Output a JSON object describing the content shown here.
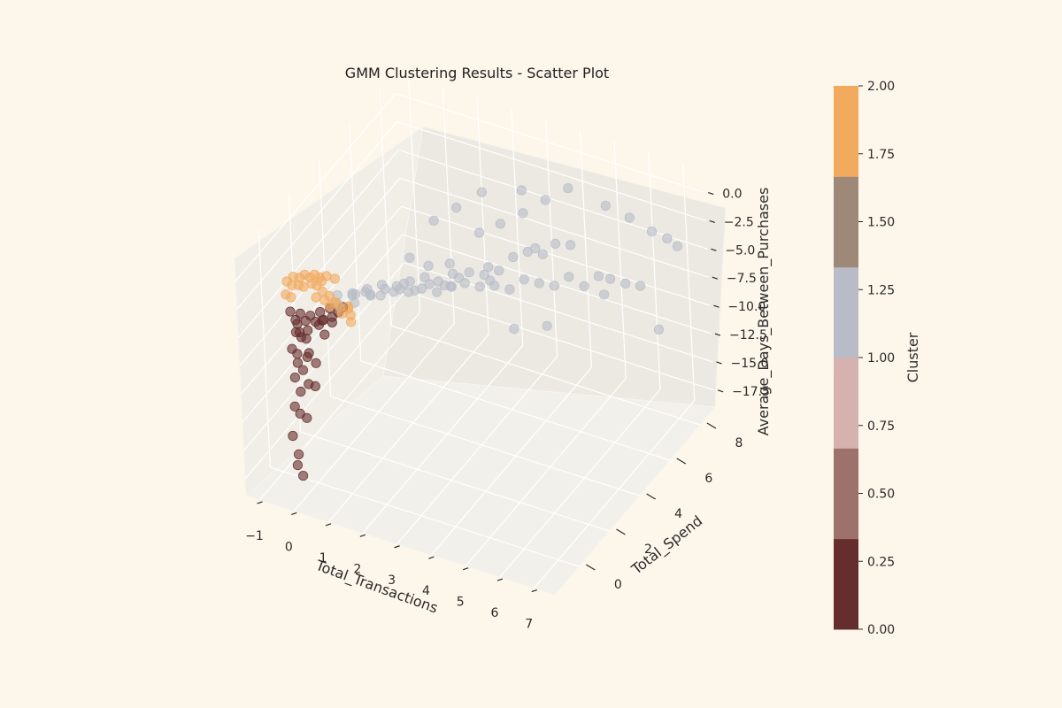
{
  "chart_data": {
    "type": "scatter",
    "projection": "3d",
    "title": "GMM Clustering Results - Scatter Plot",
    "xlabel": "Total_Transactions",
    "ylabel": "Total_Spend",
    "zlabel": "Average_Days_Between_Purchases",
    "xlim": [
      -1.4,
      7.6
    ],
    "ylim": [
      -1.6,
      9.0
    ],
    "zlim": [
      -19.0,
      2.0
    ],
    "x_ticks": [
      "−1",
      "0",
      "1",
      "2",
      "3",
      "4",
      "5",
      "6",
      "7"
    ],
    "y_ticks": [
      "0",
      "2",
      "4",
      "6",
      "8"
    ],
    "z_ticks": [
      "0.0",
      "−2.5",
      "−5.0",
      "−7.5",
      "−10.0",
      "−12.5",
      "−15.0",
      "−17.5"
    ],
    "grid": true,
    "marker_alpha": 0.6,
    "colorbar": {
      "label": "Cluster",
      "range": [
        0,
        2
      ],
      "ticks": [
        "0.00",
        "0.25",
        "0.50",
        "0.75",
        "1.00",
        "1.25",
        "1.50",
        "1.75",
        "2.00"
      ],
      "bands": [
        "#652d2d",
        "#9e726c",
        "#d5b2ad",
        "#b7bcc6",
        "#9e8877",
        "#f2aa5f"
      ]
    },
    "series": [
      {
        "cluster": 0,
        "color": "#652d2d",
        "points": [
          [
            -0.3,
            -0.6,
            -3.2
          ],
          [
            -0.2,
            -0.5,
            -4.0
          ],
          [
            -0.2,
            -0.4,
            -4.5
          ],
          [
            -0.1,
            -0.5,
            -5.0
          ],
          [
            -0.3,
            -0.3,
            -5.5
          ],
          [
            -0.2,
            -0.2,
            -6.0
          ],
          [
            -0.1,
            -0.4,
            -3.5
          ],
          [
            0.0,
            -0.3,
            -4.2
          ],
          [
            -0.3,
            -0.6,
            -6.5
          ],
          [
            -0.2,
            -0.5,
            -7.0
          ],
          [
            0.1,
            -0.2,
            -3.8
          ],
          [
            0.2,
            -0.1,
            -4.4
          ],
          [
            0.0,
            -0.2,
            -5.2
          ],
          [
            -0.1,
            -0.1,
            -6.2
          ],
          [
            0.3,
            0.0,
            -3.6
          ],
          [
            0.4,
            -0.1,
            -4.1
          ],
          [
            0.2,
            0.1,
            -5.0
          ],
          [
            0.5,
            0.2,
            -3.4
          ],
          [
            0.6,
            0.1,
            -3.9
          ],
          [
            0.3,
            0.2,
            -4.6
          ],
          [
            -0.2,
            -0.5,
            -7.8
          ],
          [
            -0.1,
            -0.4,
            -8.5
          ],
          [
            0.0,
            -0.3,
            -7.4
          ],
          [
            0.1,
            -0.4,
            -6.8
          ],
          [
            -0.3,
            -0.5,
            -9.2
          ],
          [
            -0.2,
            -0.4,
            -10.5
          ],
          [
            0.0,
            -0.3,
            -9.8
          ],
          [
            0.2,
            -0.2,
            -7.9
          ],
          [
            -0.3,
            -0.6,
            -11.6
          ],
          [
            -0.2,
            -0.5,
            -12.3
          ],
          [
            0.1,
            -0.1,
            -10.2
          ],
          [
            -0.1,
            -0.3,
            -12.9
          ],
          [
            -0.4,
            -0.6,
            -14.3
          ],
          [
            -0.3,
            -0.5,
            -16.0
          ],
          [
            -0.3,
            -0.6,
            -16.8
          ],
          [
            -0.2,
            -0.5,
            -17.8
          ],
          [
            0.4,
            0.0,
            -5.5
          ],
          [
            0.7,
            0.3,
            -3.7
          ],
          [
            0.8,
            0.4,
            -3.3
          ],
          [
            0.5,
            0.3,
            -4.8
          ]
        ]
      },
      {
        "cluster": 1,
        "color": "#b7bcc6",
        "points": [
          [
            0.6,
            0.5,
            -2.6
          ],
          [
            0.9,
            0.8,
            -2.8
          ],
          [
            1.2,
            1.0,
            -2.5
          ],
          [
            1.5,
            1.3,
            -3.0
          ],
          [
            1.8,
            1.5,
            -2.7
          ],
          [
            2.1,
            1.8,
            -2.9
          ],
          [
            2.4,
            2.0,
            -2.6
          ],
          [
            2.7,
            2.3,
            -3.1
          ],
          [
            3.0,
            2.6,
            -2.8
          ],
          [
            3.3,
            2.8,
            -2.5
          ],
          [
            3.6,
            3.1,
            -3.0
          ],
          [
            0.8,
            1.2,
            -3.4
          ],
          [
            1.1,
            1.5,
            -3.6
          ],
          [
            1.4,
            1.8,
            -3.3
          ],
          [
            1.7,
            2.1,
            -3.5
          ],
          [
            2.0,
            2.4,
            -3.8
          ],
          [
            2.3,
            2.7,
            -3.4
          ],
          [
            2.6,
            3.0,
            -3.7
          ],
          [
            2.9,
            3.3,
            -3.2
          ],
          [
            1.0,
            0.6,
            -2.2
          ],
          [
            1.3,
            0.9,
            -2.0
          ],
          [
            1.6,
            1.2,
            -1.8
          ],
          [
            1.9,
            1.5,
            -2.1
          ],
          [
            2.2,
            1.7,
            -1.7
          ],
          [
            2.5,
            2.0,
            -1.5
          ],
          [
            2.8,
            2.2,
            -1.9
          ],
          [
            3.1,
            2.5,
            -1.4
          ],
          [
            3.4,
            2.9,
            -1.6
          ],
          [
            3.7,
            3.2,
            -2.0
          ],
          [
            4.0,
            3.5,
            -1.8
          ],
          [
            4.2,
            4.0,
            -1.2
          ],
          [
            4.5,
            4.3,
            -0.9
          ],
          [
            4.8,
            4.6,
            -1.3
          ],
          [
            5.0,
            5.0,
            -0.8
          ],
          [
            5.3,
            5.3,
            -1.1
          ],
          [
            3.8,
            3.6,
            -3.5
          ],
          [
            4.1,
            3.9,
            -4.0
          ],
          [
            4.4,
            4.2,
            -3.3
          ],
          [
            4.7,
            4.5,
            -3.8
          ],
          [
            5.0,
            4.8,
            -4.2
          ],
          [
            5.3,
            5.1,
            -3.6
          ],
          [
            5.6,
            5.4,
            -4.6
          ],
          [
            5.9,
            5.7,
            -3.9
          ],
          [
            6.1,
            6.0,
            -4.4
          ],
          [
            6.4,
            6.3,
            -5.0
          ],
          [
            3.0,
            4.5,
            -1.0
          ],
          [
            3.4,
            5.0,
            -0.6
          ],
          [
            3.8,
            5.6,
            -0.2
          ],
          [
            4.2,
            6.2,
            0.4
          ],
          [
            4.6,
            6.8,
            0.9
          ],
          [
            2.0,
            3.8,
            0.2
          ],
          [
            2.4,
            4.4,
            0.8
          ],
          [
            2.8,
            5.2,
            1.3
          ],
          [
            3.6,
            6.0,
            1.0
          ],
          [
            5.5,
            7.2,
            -0.4
          ],
          [
            6.0,
            7.6,
            -1.6
          ],
          [
            6.5,
            7.9,
            -2.8
          ],
          [
            6.8,
            8.2,
            -3.6
          ],
          [
            7.0,
            8.4,
            -4.4
          ],
          [
            6.6,
            6.8,
            -5.8
          ],
          [
            5.8,
            6.2,
            -6.4
          ],
          [
            6.9,
            7.2,
            -10.0
          ],
          [
            1.5,
            2.8,
            -4.3
          ],
          [
            2.5,
            3.6,
            -4.8
          ],
          [
            3.2,
            4.6,
            -5.2
          ],
          [
            4.6,
            3.0,
            -5.6
          ],
          [
            5.2,
            3.8,
            -6.0
          ],
          [
            0.7,
            0.3,
            -3.0
          ],
          [
            1.0,
            0.7,
            -3.2
          ],
          [
            1.3,
            1.1,
            -2.9
          ],
          [
            2.2,
            2.9,
            -2.2
          ],
          [
            2.6,
            3.4,
            -2.4
          ],
          [
            1.8,
            2.6,
            -1.4
          ],
          [
            3.5,
            3.9,
            -2.6
          ],
          [
            4.3,
            5.2,
            -2.2
          ]
        ]
      },
      {
        "cluster": 2,
        "color": "#f2aa5f",
        "points": [
          [
            -0.5,
            -0.3,
            -1.2
          ],
          [
            -0.4,
            -0.1,
            -1.0
          ],
          [
            -0.3,
            0.1,
            -1.3
          ],
          [
            -0.2,
            0.2,
            -1.1
          ],
          [
            -0.1,
            0.3,
            -1.4
          ],
          [
            0.0,
            0.4,
            -1.2
          ],
          [
            0.1,
            0.5,
            -1.5
          ],
          [
            -0.4,
            -0.2,
            -1.6
          ],
          [
            -0.3,
            0.0,
            -1.8
          ],
          [
            -0.2,
            0.1,
            -2.0
          ],
          [
            0.0,
            0.2,
            -1.7
          ],
          [
            0.1,
            0.3,
            -1.9
          ],
          [
            0.2,
            0.4,
            -1.6
          ],
          [
            0.3,
            0.2,
            -2.1
          ],
          [
            0.2,
            0.0,
            -2.4
          ],
          [
            0.4,
            0.1,
            -2.6
          ],
          [
            0.5,
            0.2,
            -2.3
          ],
          [
            0.6,
            0.0,
            -2.8
          ],
          [
            0.7,
            0.1,
            -2.5
          ],
          [
            0.8,
            0.2,
            -3.0
          ],
          [
            0.9,
            0.1,
            -3.3
          ],
          [
            1.0,
            0.3,
            -2.9
          ],
          [
            1.1,
            0.2,
            -3.4
          ],
          [
            1.2,
            0.0,
            -3.6
          ],
          [
            0.3,
            0.5,
            -1.2
          ],
          [
            0.5,
            0.6,
            -1.4
          ],
          [
            -0.5,
            -0.4,
            -2.2
          ],
          [
            -0.4,
            -0.3,
            -2.5
          ],
          [
            0.6,
            0.4,
            -3.1
          ],
          [
            0.9,
            0.5,
            -3.5
          ]
        ]
      }
    ]
  }
}
